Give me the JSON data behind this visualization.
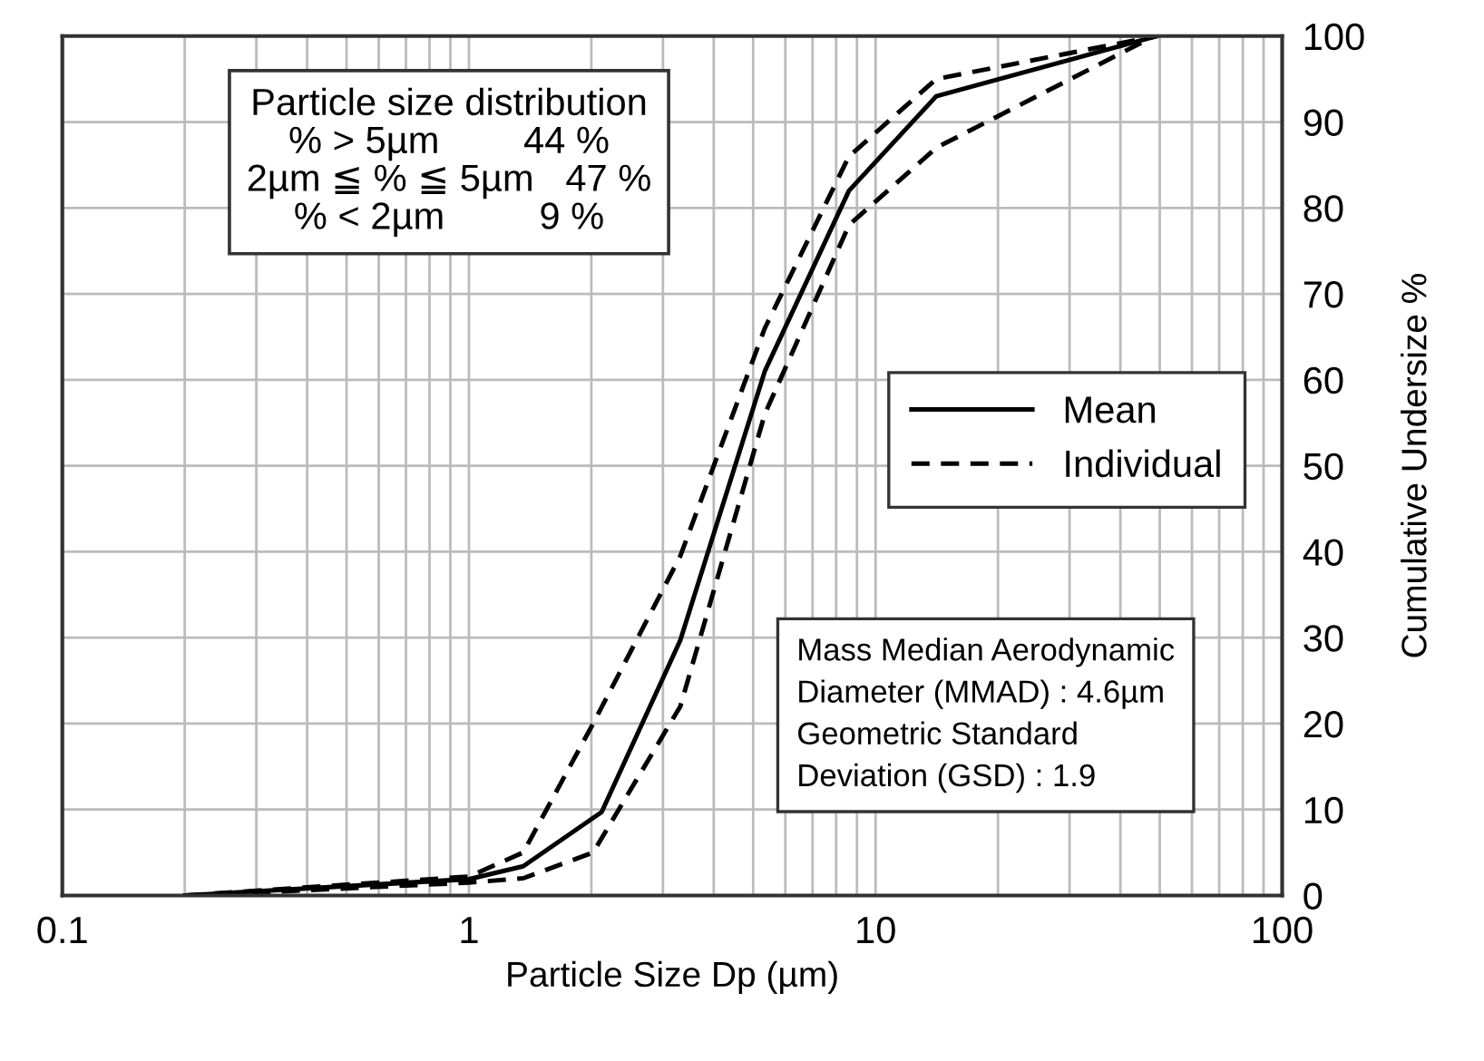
{
  "chart_data": {
    "type": "line",
    "xlabel": "Particle Size Dp (µm)",
    "ylabel": "Cumulative Undersize %",
    "log": "x",
    "xlim": [
      0.1,
      100
    ],
    "xticks": [
      0.1,
      1,
      10,
      100
    ],
    "ylim": [
      0,
      100
    ],
    "yticks": [
      0,
      10,
      20,
      30,
      40,
      50,
      60,
      70,
      80,
      90,
      100
    ],
    "grid": true,
    "legend": "right",
    "marker": "none",
    "series": [
      {
        "name": "Mean",
        "color": "#000000",
        "line_style": "solid",
        "x": [
          0.2,
          1.0,
          1.36,
          2.12,
          3.31,
          5.34,
          8.6,
          14.1,
          49.2
        ],
        "values": [
          0,
          1.9,
          3.4,
          9.7,
          29.7,
          61,
          82,
          93,
          100
        ]
      },
      {
        "name": "Individual",
        "color": "#000000",
        "line_style": "dashed",
        "x": [
          0.2,
          1.0,
          1.36,
          2.02,
          3.31,
          5.34,
          8.6,
          14.1,
          49.2
        ],
        "values": [
          0,
          2.2,
          5,
          20,
          39.5,
          66,
          86,
          95,
          100
        ]
      },
      {
        "color": "#000000",
        "line_style": "dashed",
        "x": [
          0.21,
          1.0,
          1.36,
          2.02,
          3.31,
          5.34,
          8.6,
          14.1,
          48.5
        ],
        "values": [
          0,
          1.5,
          2,
          5,
          22,
          56,
          78,
          87,
          100
        ]
      }
    ],
    "annotations": [
      "Particle size distribution\n% > 5µm        44 %\n2µm ≦ % ≦ 5µm   47 %\n% < 2µm         9 %",
      "Mass Median Aerodynamic\nDiameter (MMAD) : 4.6µm\nGeometric Standard\nDeviation (GSD) : 1.9"
    ]
  }
}
